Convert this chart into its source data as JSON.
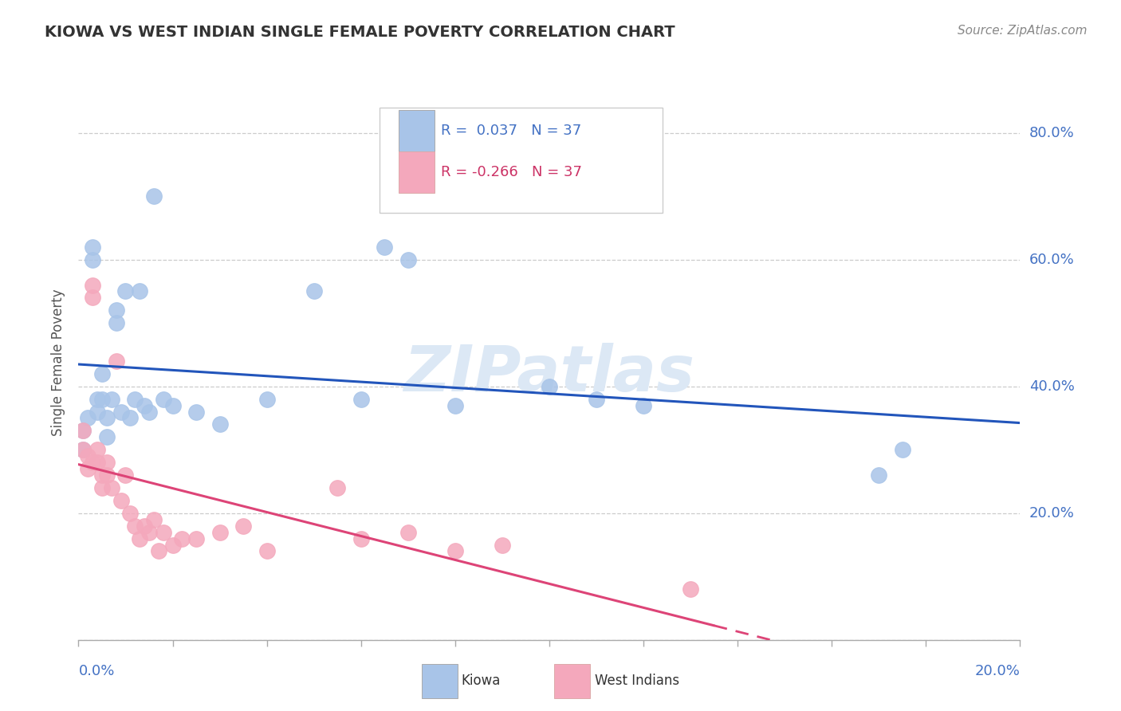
{
  "title": "KIOWA VS WEST INDIAN SINGLE FEMALE POVERTY CORRELATION CHART",
  "source": "Source: ZipAtlas.com",
  "ylabel": "Single Female Poverty",
  "kiowa_R": 0.037,
  "kiowa_N": 37,
  "westindian_R": -0.266,
  "westindian_N": 37,
  "kiowa_color": "#a8c4e8",
  "kiowa_line_color": "#2255bb",
  "westindian_color": "#f4a8bc",
  "westindian_line_color": "#dd4477",
  "background_color": "#ffffff",
  "kiowa_x": [
    0.001,
    0.001,
    0.002,
    0.003,
    0.003,
    0.004,
    0.004,
    0.005,
    0.005,
    0.006,
    0.006,
    0.007,
    0.008,
    0.008,
    0.009,
    0.01,
    0.011,
    0.012,
    0.013,
    0.014,
    0.015,
    0.016,
    0.018,
    0.02,
    0.025,
    0.03,
    0.04,
    0.05,
    0.06,
    0.065,
    0.07,
    0.08,
    0.1,
    0.11,
    0.12,
    0.17,
    0.175
  ],
  "kiowa_y": [
    0.3,
    0.33,
    0.35,
    0.6,
    0.62,
    0.38,
    0.36,
    0.42,
    0.38,
    0.35,
    0.32,
    0.38,
    0.52,
    0.5,
    0.36,
    0.55,
    0.35,
    0.38,
    0.55,
    0.37,
    0.36,
    0.7,
    0.38,
    0.37,
    0.36,
    0.34,
    0.38,
    0.55,
    0.38,
    0.62,
    0.6,
    0.37,
    0.4,
    0.38,
    0.37,
    0.26,
    0.3
  ],
  "westindian_x": [
    0.001,
    0.001,
    0.002,
    0.002,
    0.003,
    0.003,
    0.003,
    0.004,
    0.004,
    0.005,
    0.005,
    0.006,
    0.006,
    0.007,
    0.008,
    0.009,
    0.01,
    0.011,
    0.012,
    0.013,
    0.014,
    0.015,
    0.016,
    0.017,
    0.018,
    0.02,
    0.022,
    0.025,
    0.03,
    0.035,
    0.04,
    0.055,
    0.06,
    0.07,
    0.08,
    0.09,
    0.13
  ],
  "westindian_y": [
    0.3,
    0.33,
    0.29,
    0.27,
    0.54,
    0.56,
    0.28,
    0.3,
    0.28,
    0.26,
    0.24,
    0.28,
    0.26,
    0.24,
    0.44,
    0.22,
    0.26,
    0.2,
    0.18,
    0.16,
    0.18,
    0.17,
    0.19,
    0.14,
    0.17,
    0.15,
    0.16,
    0.16,
    0.17,
    0.18,
    0.14,
    0.24,
    0.16,
    0.17,
    0.14,
    0.15,
    0.08
  ],
  "xlim": [
    0.0,
    0.2
  ],
  "ylim": [
    0.0,
    0.875
  ],
  "yticks": [
    0.0,
    0.2,
    0.4,
    0.6,
    0.8
  ],
  "ytick_labels": [
    "",
    "20.0%",
    "40.0%",
    "60.0%",
    "80.0%"
  ],
  "xticks": [
    0.0,
    0.02,
    0.04,
    0.06,
    0.08,
    0.1,
    0.12,
    0.14,
    0.16,
    0.18,
    0.2
  ]
}
